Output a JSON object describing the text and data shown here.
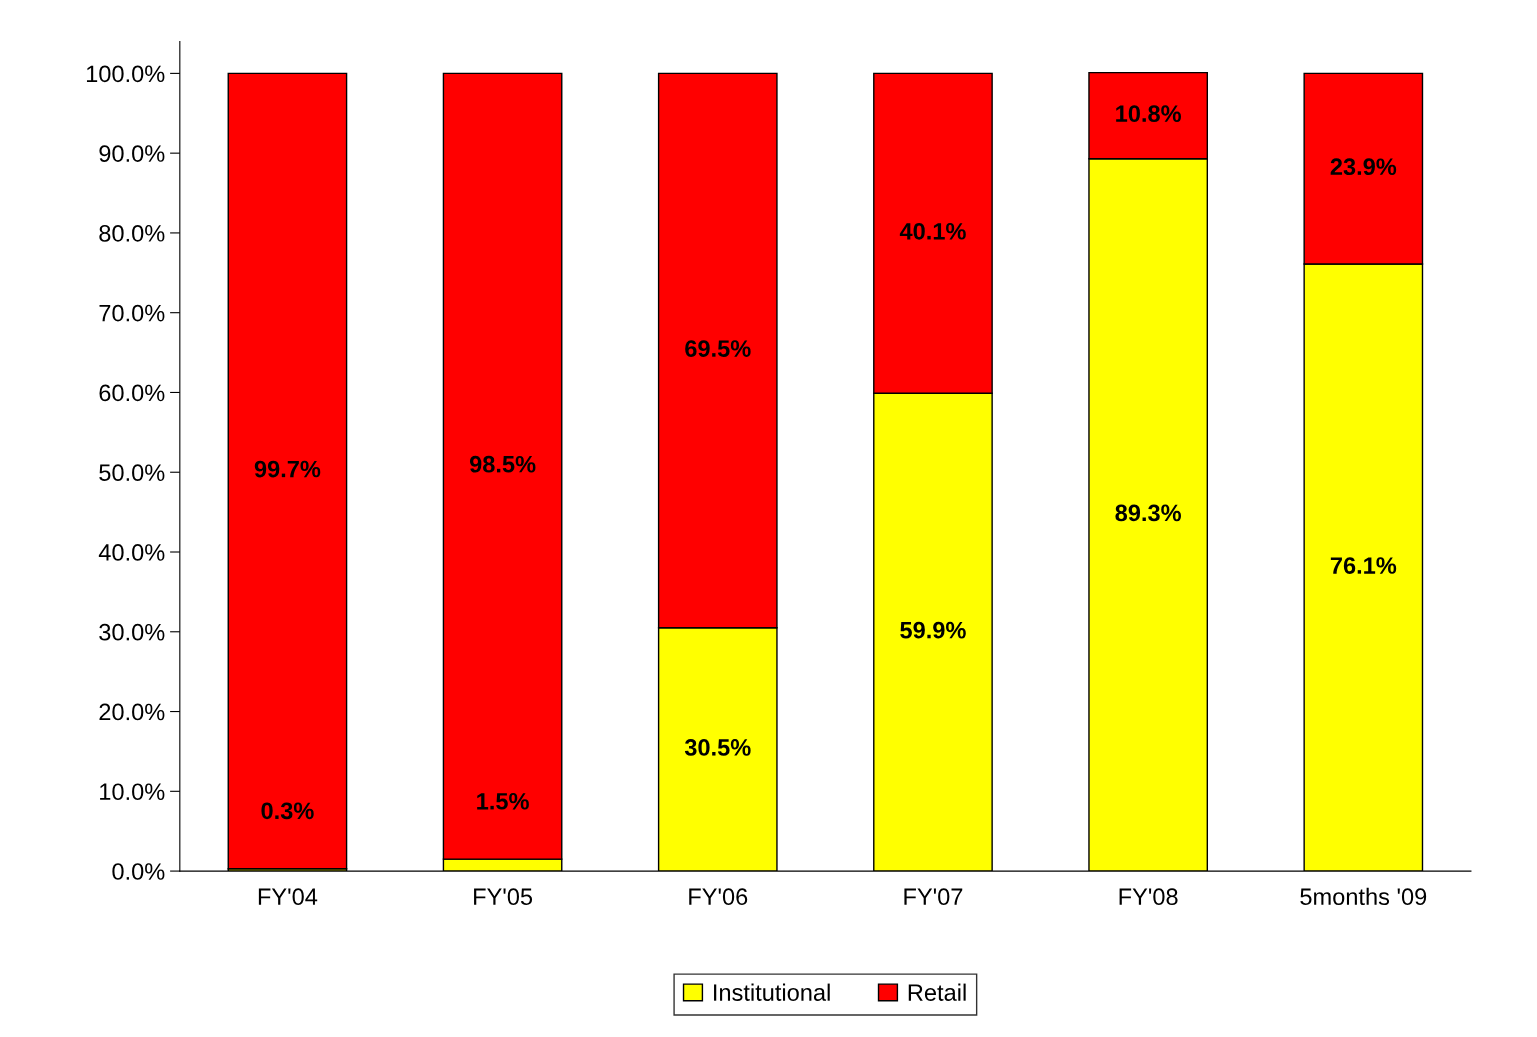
{
  "chart_data": {
    "type": "bar",
    "stacked": true,
    "categories": [
      "FY'04",
      "FY'05",
      "FY'06",
      "FY'07",
      "FY'08",
      "5months '09"
    ],
    "series": [
      {
        "name": "Institutional",
        "color": "#ffff00",
        "values": [
          0.3,
          1.5,
          30.5,
          59.9,
          89.3,
          76.1
        ],
        "value_labels": [
          "0.3%",
          "1.5%",
          "30.5%",
          "59.9%",
          "89.3%",
          "76.1%"
        ]
      },
      {
        "name": "Retail",
        "color": "#ff0000",
        "values": [
          99.7,
          98.5,
          69.5,
          40.1,
          10.8,
          23.9
        ],
        "value_labels": [
          "99.7%",
          "98.5%",
          "69.5%",
          "40.1%",
          "10.8%",
          "23.9%"
        ]
      }
    ],
    "ylim": [
      0,
      104
    ],
    "yticks": [
      {
        "value": 0,
        "label": "0.0%"
      },
      {
        "value": 10,
        "label": "10.0%"
      },
      {
        "value": 20,
        "label": "20.0%"
      },
      {
        "value": 30,
        "label": "30.0%"
      },
      {
        "value": 40,
        "label": "40.0%"
      },
      {
        "value": 50,
        "label": "50.0%"
      },
      {
        "value": 60,
        "label": "60.0%"
      },
      {
        "value": 70,
        "label": "70.0%"
      },
      {
        "value": 80,
        "label": "80.0%"
      },
      {
        "value": 90,
        "label": "90.0%"
      },
      {
        "value": 100,
        "label": "100.0%"
      }
    ],
    "grid": false,
    "legend": "bottom"
  }
}
